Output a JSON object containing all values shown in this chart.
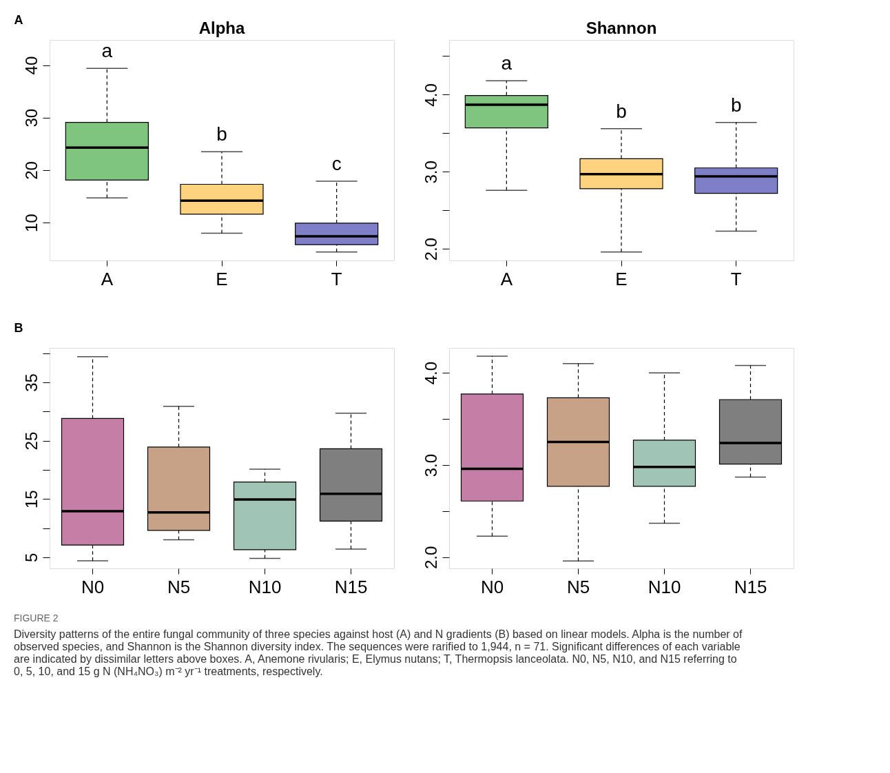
{
  "chart_data": [
    {
      "type": "box",
      "title": "Alpha",
      "categories": [
        "A",
        "E",
        "T"
      ],
      "colors": [
        "#7fc47f",
        "#fed37f",
        "#7f7fc8"
      ],
      "boxes": [
        {
          "low": 14.7,
          "q1": 18.1,
          "median": 24.3,
          "q3": 29.1,
          "high": 39.4
        },
        {
          "low": 8.0,
          "q1": 11.6,
          "median": 14.2,
          "q3": 17.3,
          "high": 23.5
        },
        {
          "low": 4.4,
          "q1": 5.8,
          "median": 7.4,
          "q3": 9.9,
          "high": 17.9
        }
      ],
      "ylim": [
        2.8,
        44.8
      ],
      "yticks": [
        10,
        20,
        30,
        40
      ],
      "grid": false,
      "annotations": [
        "A",
        "a",
        "b",
        "c"
      ]
    },
    {
      "type": "box",
      "title": "Shannon",
      "categories": [
        "A",
        "E",
        "T"
      ],
      "colors": [
        "#7fc47f",
        "#fed37f",
        "#7f7fc8"
      ],
      "boxes": [
        {
          "low": 2.76,
          "q1": 3.57,
          "median": 3.87,
          "q3": 3.99,
          "high": 4.18
        },
        {
          "low": 1.96,
          "q1": 2.78,
          "median": 2.97,
          "q3": 3.17,
          "high": 3.56
        },
        {
          "low": 2.23,
          "q1": 2.72,
          "median": 2.94,
          "q3": 3.05,
          "high": 3.64
        }
      ],
      "ylim": [
        1.85,
        4.71
      ],
      "yticks": [
        {
          "value": 2,
          "label": "2.0"
        },
        {
          "value": 2.5,
          "label": null
        },
        {
          "value": 3,
          "label": "3.0"
        },
        {
          "value": 3.5,
          "label": null
        },
        {
          "value": 4,
          "label": "4.0"
        },
        {
          "value": 4.5,
          "label": null
        }
      ],
      "grid": false,
      "annotations": [
        "a",
        "b",
        "b"
      ]
    },
    {
      "type": "box",
      "categories": [
        "N0",
        "N5",
        "N10",
        "N15"
      ],
      "colors": [
        "#c57fa6",
        "#c8a287",
        "#a0c4b6",
        "#7f7f7f"
      ],
      "boxes": [
        {
          "low": 4.4,
          "q1": 7.1,
          "median": 12.9,
          "q3": 28.8,
          "high": 39.4
        },
        {
          "low": 8.0,
          "q1": 9.6,
          "median": 12.7,
          "q3": 23.9,
          "high": 30.9
        },
        {
          "low": 4.8,
          "q1": 6.3,
          "median": 14.9,
          "q3": 17.9,
          "high": 20.1
        },
        {
          "low": 6.4,
          "q1": 11.2,
          "median": 15.9,
          "q3": 23.6,
          "high": 29.7
        }
      ],
      "ylim": [
        3.1,
        40.9
      ],
      "yticks": [
        5,
        {
          "value": 10,
          "label": null
        },
        15,
        {
          "value": 20,
          "label": null
        },
        25,
        {
          "value": 30,
          "label": null
        },
        35,
        {
          "value": 40,
          "label": null
        }
      ],
      "grid": false,
      "annotations": [
        "B"
      ]
    },
    {
      "type": "box",
      "categories": [
        "N0",
        "N5",
        "N10",
        "N15"
      ],
      "colors": [
        "#c57fa6",
        "#c8a287",
        "#a0c4b6",
        "#7f7f7f"
      ],
      "boxes": [
        {
          "low": 2.23,
          "q1": 2.61,
          "median": 2.96,
          "q3": 3.77,
          "high": 4.18
        },
        {
          "low": 1.96,
          "q1": 2.77,
          "median": 3.25,
          "q3": 3.73,
          "high": 4.1
        },
        {
          "low": 2.37,
          "q1": 2.77,
          "median": 2.98,
          "q3": 3.27,
          "high": 4.0
        },
        {
          "low": 2.87,
          "q1": 3.01,
          "median": 3.24,
          "q3": 3.71,
          "high": 4.08
        }
      ],
      "ylim": [
        1.88,
        4.27
      ],
      "yticks": [
        {
          "value": 2,
          "label": "2.0"
        },
        {
          "value": 2.5,
          "label": null
        },
        {
          "value": 3,
          "label": "3.0"
        },
        {
          "value": 3.5,
          "label": null
        },
        {
          "value": 4,
          "label": "4.0"
        }
      ],
      "grid": false,
      "annotations": [
        "FIGURE 2",
        "Diversity patterns of the entire fungal community of three species against host (A) and N gradients (B) based on linear models. Alpha is the number of observed species, and Shannon is the Shannon diversity index. The sequences were rarified to 1,944, n = 71. Significant differences of each variable are indicated by dissimilar letters above boxes. A, Anemone rivularis; E, Elymus nutans; T, Thermopsis lanceolata. N0, N5, N10, and N15 referring to 0, 5, 10, and 15 g N (NH₄NO₃) m⁻² yr⁻¹ treatments, respectively."
      ]
    }
  ]
}
